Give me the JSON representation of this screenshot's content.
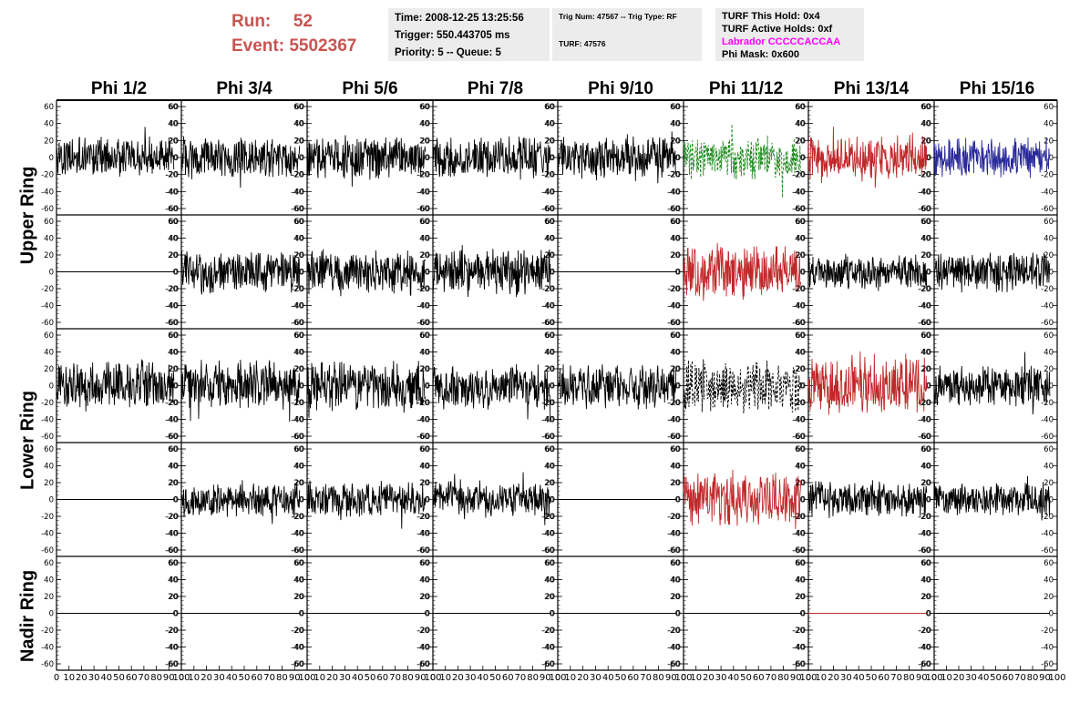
{
  "header": {
    "run_label": "Run:",
    "run_value": "52",
    "event_label": "Event:",
    "event_value": "5502367",
    "run_color": "#c85450"
  },
  "info_time": {
    "time": "Time: 2008-12-25 13:25:56",
    "trigger": "Trigger: 550.443705 ms",
    "priority": "Priority: 5 -- Queue: 5"
  },
  "info_trig": {
    "trig_line": "Trig Num: 47567 -- Trig Type: RF",
    "turf_line": "TURF: 47576"
  },
  "info_turf": {
    "this_hold": "TURF This Hold: 0x4",
    "active_holds": "TURF Active Holds: 0xf",
    "labrador": "Labrador CCCCCACCAA",
    "phi_mask": "Phi Mask: 0x600",
    "labrador_color": "#ff00ff"
  },
  "columns": [
    "Phi 1/2",
    "Phi 3/4",
    "Phi 5/6",
    "Phi 7/8",
    "Phi 9/10",
    "Phi 11/12",
    "Phi 13/14",
    "Phi 15/16"
  ],
  "rings": {
    "upper": "Upper Ring",
    "lower": "Lower Ring",
    "nadir": "Nadir Ring"
  },
  "colors": {
    "black": "#000000",
    "red": "#c0282a",
    "green": "#1a8a1a",
    "blue": "#2a2a9a"
  },
  "chart_data": {
    "type": "line",
    "layout": "grid",
    "n_cols": 8,
    "n_rows": 5,
    "ylim": [
      -60,
      60
    ],
    "y_ticks": [
      -60,
      -40,
      -20,
      0,
      20,
      40,
      60
    ],
    "xlim": [
      0,
      100
    ],
    "x_ticks": [
      0,
      10,
      20,
      30,
      40,
      50,
      60,
      70,
      80,
      90,
      100
    ],
    "x_tick_labels": [
      "0",
      "10",
      "20",
      "30",
      "40",
      "50",
      "60",
      "70",
      "80",
      "90",
      "100"
    ],
    "x_tick_labels_last_column": [
      "0",
      "10",
      "20",
      "30",
      "40",
      "50",
      "60",
      "70",
      "80",
      "90",
      "100"
    ],
    "x_labels_note": "tick labels printed under bottom row only",
    "panels": [
      {
        "row": 0,
        "col": 0,
        "color": "black",
        "style": "solid",
        "amplitude": 22,
        "flat": false
      },
      {
        "row": 0,
        "col": 1,
        "color": "black",
        "style": "solid",
        "amplitude": 22,
        "flat": false
      },
      {
        "row": 0,
        "col": 2,
        "color": "black",
        "style": "solid",
        "amplitude": 24,
        "flat": false
      },
      {
        "row": 0,
        "col": 3,
        "color": "black",
        "style": "solid",
        "amplitude": 24,
        "flat": false
      },
      {
        "row": 0,
        "col": 4,
        "color": "black",
        "style": "solid",
        "amplitude": 24,
        "flat": false
      },
      {
        "row": 0,
        "col": 5,
        "color": "green",
        "style": "dashed",
        "amplitude": 24,
        "flat": false
      },
      {
        "row": 0,
        "col": 6,
        "color": "red",
        "style": "solid",
        "amplitude": 26,
        "flat": false
      },
      {
        "row": 0,
        "col": 7,
        "color": "blue",
        "style": "solid",
        "amplitude": 22,
        "flat": false
      },
      {
        "row": 1,
        "col": 0,
        "color": "black",
        "style": "solid",
        "amplitude": 0,
        "flat": true
      },
      {
        "row": 1,
        "col": 1,
        "color": "black",
        "style": "solid",
        "amplitude": 24,
        "flat": false
      },
      {
        "row": 1,
        "col": 2,
        "color": "black",
        "style": "solid",
        "amplitude": 24,
        "flat": false
      },
      {
        "row": 1,
        "col": 3,
        "color": "black",
        "style": "solid",
        "amplitude": 26,
        "flat": false
      },
      {
        "row": 1,
        "col": 4,
        "color": "black",
        "style": "solid",
        "amplitude": 0,
        "flat": true
      },
      {
        "row": 1,
        "col": 5,
        "color": "red",
        "style": "solid",
        "amplitude": 32,
        "flat": false
      },
      {
        "row": 1,
        "col": 6,
        "color": "black",
        "style": "solid",
        "amplitude": 20,
        "flat": false
      },
      {
        "row": 1,
        "col": 7,
        "color": "black",
        "style": "solid",
        "amplitude": 22,
        "flat": false
      },
      {
        "row": 2,
        "col": 0,
        "color": "black",
        "style": "solid",
        "amplitude": 26,
        "flat": false
      },
      {
        "row": 2,
        "col": 1,
        "color": "black",
        "style": "solid",
        "amplitude": 26,
        "flat": false
      },
      {
        "row": 2,
        "col": 2,
        "color": "black",
        "style": "solid",
        "amplitude": 28,
        "flat": false
      },
      {
        "row": 2,
        "col": 3,
        "color": "black",
        "style": "solid",
        "amplitude": 26,
        "flat": false
      },
      {
        "row": 2,
        "col": 4,
        "color": "black",
        "style": "solid",
        "amplitude": 26,
        "flat": false
      },
      {
        "row": 2,
        "col": 5,
        "color": "black",
        "style": "dashed",
        "amplitude": 28,
        "flat": false
      },
      {
        "row": 2,
        "col": 6,
        "color": "red",
        "style": "solid",
        "amplitude": 32,
        "flat": false
      },
      {
        "row": 2,
        "col": 7,
        "color": "black",
        "style": "solid",
        "amplitude": 22,
        "flat": false
      },
      {
        "row": 3,
        "col": 0,
        "color": "black",
        "style": "solid",
        "amplitude": 0,
        "flat": true
      },
      {
        "row": 3,
        "col": 1,
        "color": "black",
        "style": "solid",
        "amplitude": 20,
        "flat": false
      },
      {
        "row": 3,
        "col": 2,
        "color": "black",
        "style": "solid",
        "amplitude": 20,
        "flat": false
      },
      {
        "row": 3,
        "col": 3,
        "color": "black",
        "style": "solid",
        "amplitude": 20,
        "flat": false
      },
      {
        "row": 3,
        "col": 4,
        "color": "black",
        "style": "solid",
        "amplitude": 0,
        "flat": true
      },
      {
        "row": 3,
        "col": 5,
        "color": "red",
        "style": "solid",
        "amplitude": 30,
        "flat": false
      },
      {
        "row": 3,
        "col": 6,
        "color": "black",
        "style": "solid",
        "amplitude": 20,
        "flat": false
      },
      {
        "row": 3,
        "col": 7,
        "color": "black",
        "style": "solid",
        "amplitude": 18,
        "flat": false
      },
      {
        "row": 4,
        "col": 0,
        "color": "black",
        "style": "solid",
        "amplitude": 0,
        "flat": true
      },
      {
        "row": 4,
        "col": 1,
        "color": "black",
        "style": "solid",
        "amplitude": 0,
        "flat": true
      },
      {
        "row": 4,
        "col": 2,
        "color": "black",
        "style": "solid",
        "amplitude": 0,
        "flat": true
      },
      {
        "row": 4,
        "col": 3,
        "color": "black",
        "style": "solid",
        "amplitude": 0,
        "flat": true
      },
      {
        "row": 4,
        "col": 4,
        "color": "black",
        "style": "solid",
        "amplitude": 0,
        "flat": true
      },
      {
        "row": 4,
        "col": 5,
        "color": "black",
        "style": "solid",
        "amplitude": 0,
        "flat": true
      },
      {
        "row": 4,
        "col": 6,
        "color": "red",
        "style": "solid",
        "amplitude": 0,
        "flat": true
      },
      {
        "row": 4,
        "col": 7,
        "color": "black",
        "style": "solid",
        "amplitude": 0,
        "flat": true
      }
    ]
  }
}
